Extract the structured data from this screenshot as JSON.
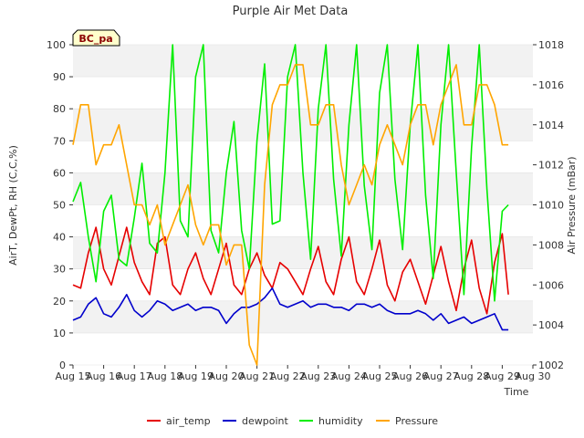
{
  "chart_data": {
    "type": "line",
    "title": "Purple Air Met Data",
    "badge": "BC_pa",
    "xlabel": "Time",
    "ylabel": "AirT, DewPt, RH (C,C,%)",
    "y2label": "Air Pressure (mBar)",
    "ylim": [
      0,
      100
    ],
    "y2lim": [
      1002,
      1018
    ],
    "x_ticks": [
      "Aug 15",
      "Aug 16",
      "Aug 17",
      "Aug 18",
      "Aug 19",
      "Aug 20",
      "Aug 21",
      "Aug 22",
      "Aug 23",
      "Aug 24",
      "Aug 25",
      "Aug 26",
      "Aug 27",
      "Aug 28",
      "Aug 29",
      "Aug 30"
    ],
    "y_ticks": [
      "0",
      "10",
      "20",
      "30",
      "40",
      "50",
      "60",
      "70",
      "80",
      "90",
      "100"
    ],
    "y2_ticks": [
      "1002",
      "1004",
      "1006",
      "1008",
      "1010",
      "1012",
      "1014",
      "1016",
      "1018"
    ],
    "grid": "horizontal bands",
    "legend_position": "bottom",
    "colors": {
      "air_temp": "#e60000",
      "dewpoint": "#0000cc",
      "humidity": "#00ee00",
      "Pressure": "#ffa500"
    },
    "x_days": [
      15.0,
      15.25,
      15.5,
      15.75,
      16.0,
      16.25,
      16.5,
      16.75,
      17.0,
      17.25,
      17.5,
      17.75,
      18.0,
      18.25,
      18.5,
      18.75,
      19.0,
      19.25,
      19.5,
      19.75,
      20.0,
      20.25,
      20.5,
      20.75,
      21.0,
      21.25,
      21.5,
      21.75,
      22.0,
      22.25,
      22.5,
      22.75,
      23.0,
      23.25,
      23.5,
      23.75,
      24.0,
      24.25,
      24.5,
      24.75,
      25.0,
      25.25,
      25.5,
      25.75,
      26.0,
      26.25,
      26.5,
      26.75,
      27.0,
      27.25,
      27.5,
      27.75,
      28.0,
      28.25,
      28.5,
      28.75,
      29.0,
      29.2
    ],
    "series": [
      {
        "name": "air_temp",
        "axis": "left",
        "values": [
          25,
          24,
          35,
          43,
          30,
          25,
          34,
          43,
          32,
          26,
          22,
          38,
          40,
          25,
          22,
          30,
          35,
          27,
          22,
          30,
          38,
          25,
          22,
          30,
          35,
          28,
          24,
          32,
          30,
          26,
          22,
          30,
          37,
          26,
          22,
          33,
          40,
          26,
          22,
          30,
          39,
          25,
          20,
          29,
          33,
          26,
          19,
          28,
          37,
          26,
          17,
          30,
          39,
          24,
          16,
          32,
          41,
          22
        ]
      },
      {
        "name": "dewpoint",
        "axis": "left",
        "values": [
          14,
          15,
          19,
          21,
          16,
          15,
          18,
          22,
          17,
          15,
          17,
          20,
          19,
          17,
          18,
          19,
          17,
          18,
          18,
          17,
          13,
          16,
          18,
          18,
          19,
          21,
          24,
          19,
          18,
          19,
          20,
          18,
          19,
          19,
          18,
          18,
          17,
          19,
          19,
          18,
          19,
          17,
          16,
          16,
          16,
          17,
          16,
          14,
          16,
          13,
          14,
          15,
          13,
          14,
          15,
          16,
          11,
          11
        ]
      },
      {
        "name": "humidity",
        "axis": "left",
        "values": [
          51,
          57,
          40,
          26,
          48,
          53,
          33,
          31,
          46,
          63,
          38,
          35,
          60,
          100,
          45,
          40,
          90,
          100,
          42,
          35,
          60,
          76,
          42,
          30,
          70,
          94,
          44,
          45,
          90,
          100,
          60,
          33,
          80,
          100,
          58,
          34,
          75,
          100,
          56,
          36,
          85,
          100,
          58,
          36,
          75,
          100,
          53,
          27,
          75,
          100,
          60,
          22,
          68,
          100,
          55,
          20,
          48,
          50
        ]
      },
      {
        "name": "Pressure",
        "axis": "right",
        "values": [
          1013,
          1015,
          1015,
          1012,
          1013,
          1013,
          1014,
          1012,
          1010,
          1010,
          1009,
          1010,
          1008,
          1009,
          1010,
          1011,
          1009,
          1008,
          1009,
          1009,
          1007,
          1008,
          1008,
          1003,
          1002,
          1011,
          1015,
          1016,
          1016,
          1017,
          1017,
          1014,
          1014,
          1015,
          1015,
          1012,
          1010,
          1011,
          1012,
          1011,
          1013,
          1014,
          1013,
          1012,
          1014,
          1015,
          1015,
          1013,
          1015,
          1016,
          1017,
          1014,
          1014,
          1016,
          1016,
          1015,
          1013,
          1013
        ]
      }
    ]
  }
}
